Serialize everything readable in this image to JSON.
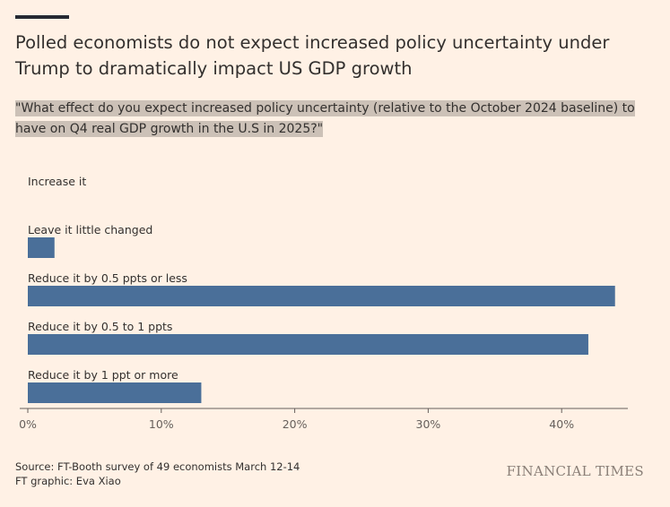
{
  "header": {
    "title": "Polled economists do not expect increased policy uncertainty under Trump to dramatically impact US GDP growth",
    "subtitle": "\"What effect do you expect increased policy uncertainty (relative to the October 2024 baseline) to have on Q4 real GDP growth in the U.S in 2025?\""
  },
  "chart_data": {
    "type": "bar",
    "orientation": "horizontal",
    "categories": [
      "Increase it",
      "Leave it little changed",
      "Reduce it by 0.5 ppts or less",
      "Reduce it by 0.5 to 1 ppts",
      "Reduce it by 1 ppt or more"
    ],
    "values": [
      0,
      2,
      44,
      42,
      13
    ],
    "unit": "%",
    "xlim": [
      0,
      45
    ],
    "xticks": [
      0,
      10,
      20,
      30,
      40
    ],
    "xtick_labels": [
      "0%",
      "10%",
      "20%",
      "30%",
      "40%"
    ],
    "bar_color": "#4a6f99",
    "grid": false,
    "legend": "none"
  },
  "footer": {
    "source": "Source: FT-Booth survey of 49 economists March 12-14",
    "credit": "FT graphic: Eva Xiao",
    "logo": "FINANCIAL TIMES"
  }
}
